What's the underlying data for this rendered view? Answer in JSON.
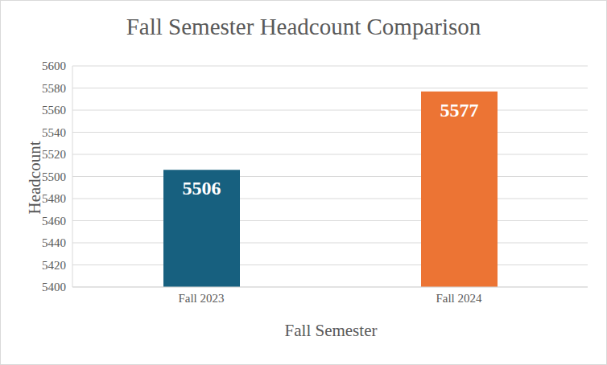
{
  "chart_data": {
    "type": "bar",
    "title": "Fall Semester Headcount Comparison",
    "x_label": "Fall Semester",
    "y_label": "Headcount",
    "categories": [
      "Fall 2023",
      "Fall 2024"
    ],
    "values": [
      5506,
      5577
    ],
    "colors": [
      "#17607f",
      "#ec7434"
    ],
    "ylim": [
      5400,
      5600
    ],
    "yticks": [
      5400,
      5420,
      5440,
      5460,
      5480,
      5500,
      5520,
      5540,
      5560,
      5580,
      5600
    ],
    "grid": true,
    "data_labels": true
  }
}
